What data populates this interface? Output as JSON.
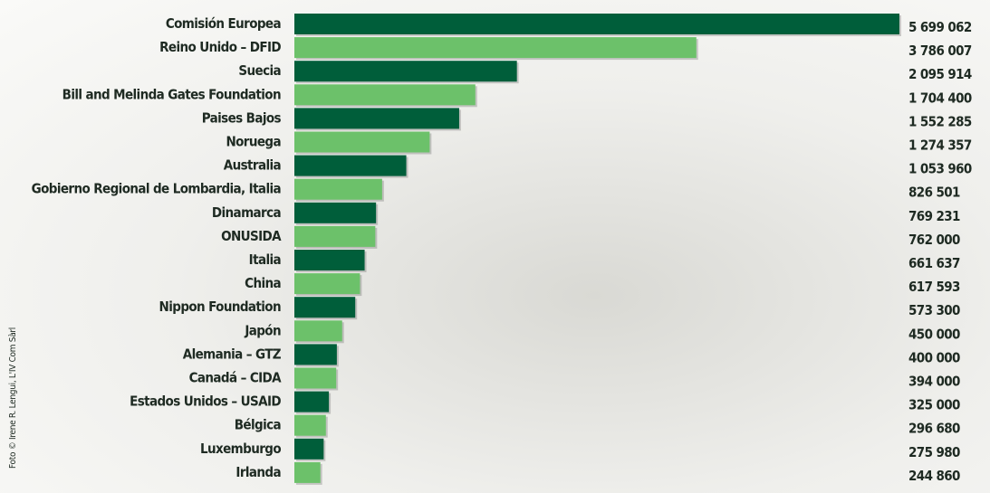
{
  "chart_data": {
    "type": "bar",
    "orientation": "horizontal",
    "categories": [
      "Comisión Europea",
      "Reino Unido – DFID",
      "Suecia",
      "Bill and Melinda Gates Foundation",
      "Paises Bajos",
      "Noruega",
      "Australia",
      "Gobierno Regional de Lombardia, Italia",
      "Dinamarca",
      "ONUSIDA",
      "Italia",
      "China",
      "Nippon Foundation",
      "Japón",
      "Alemania – GTZ",
      "Canadá – CIDA",
      "Estados Unidos – USAID",
      "Bélgica",
      "Luxemburgo",
      "Irlanda"
    ],
    "values": [
      5699062,
      3786007,
      2095914,
      1704400,
      1552285,
      1274357,
      1053960,
      826501,
      769231,
      762000,
      661637,
      617593,
      573300,
      450000,
      400000,
      394000,
      325000,
      296680,
      275980,
      244860
    ],
    "value_labels": [
      "5 699 062",
      "3 786 007",
      "2 095 914",
      "1 704 400",
      "1 552 285",
      "1 274 357",
      "1 053 960",
      "826 501",
      "769 231",
      "762 000",
      "661 637",
      "617 593",
      "573 300",
      "450 000",
      "400 000",
      "394 000",
      "325 000",
      "296 680",
      "275 980",
      "244 860"
    ],
    "colors": [
      "#005e3a",
      "#6cc16a"
    ],
    "credit": "Foto © Irene R. Lengui, L'IV Com Sàrl"
  }
}
